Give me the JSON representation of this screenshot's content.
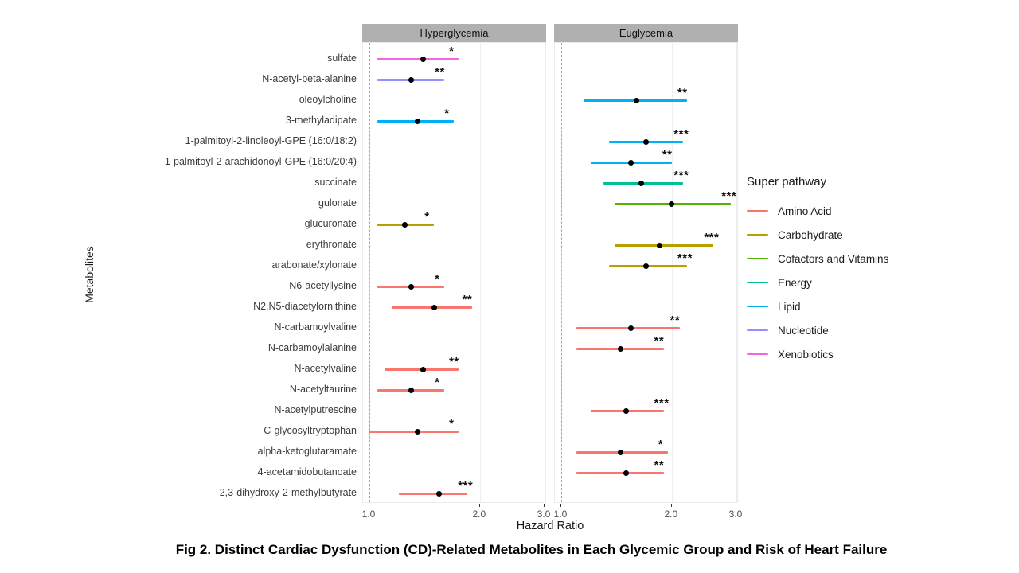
{
  "figure": {
    "caption": "Fig 2. Distinct Cardiac Dysfunction (CD)-Related Metabolites in Each Glycemic Group and Risk of Heart Failure",
    "x_axis_label": "Hazard Ratio",
    "y_axis_label": "Metabolites"
  },
  "legend": {
    "title": "Super pathway",
    "items": [
      {
        "label": "Amino Acid",
        "color": "#F8766D"
      },
      {
        "label": "Carbohydrate",
        "color": "#B79F00"
      },
      {
        "label": "Cofactors and Vitamins",
        "color": "#53B400"
      },
      {
        "label": "Energy",
        "color": "#00C094"
      },
      {
        "label": "Lipid",
        "color": "#00B0F6"
      },
      {
        "label": "Nucleotide",
        "color": "#9590FF"
      },
      {
        "label": "Xenobiotics",
        "color": "#F564E3"
      }
    ]
  },
  "chart_data": {
    "type": "forest",
    "panels": [
      "Hyperglycemia",
      "Euglycemia"
    ],
    "x_scale": "log",
    "x_ticks": [
      1.0,
      2.0,
      3.0
    ],
    "x_range": [
      0.95,
      3.1
    ],
    "reference_line": 1.0,
    "rows": [
      {
        "metabolite": "sulfate",
        "panel": "Hyperglycemia",
        "pathway": "Xenobiotics",
        "hr": 1.4,
        "lo": 1.05,
        "hi": 1.75,
        "sig": "*"
      },
      {
        "metabolite": "N-acetyl-beta-alanine",
        "panel": "Hyperglycemia",
        "pathway": "Nucleotide",
        "hr": 1.3,
        "lo": 1.05,
        "hi": 1.6,
        "sig": "**"
      },
      {
        "metabolite": "oleoylcholine",
        "panel": "Euglycemia",
        "pathway": "Lipid",
        "hr": 1.6,
        "lo": 1.15,
        "hi": 2.2,
        "sig": "**"
      },
      {
        "metabolite": "3-methyladipate",
        "panel": "Hyperglycemia",
        "pathway": "Lipid",
        "hr": 1.35,
        "lo": 1.05,
        "hi": 1.7,
        "sig": "*"
      },
      {
        "metabolite": "1-palmitoyl-2-linoleoyl-GPE (16:0/18:2)",
        "panel": "Euglycemia",
        "pathway": "Lipid",
        "hr": 1.7,
        "lo": 1.35,
        "hi": 2.15,
        "sig": "***"
      },
      {
        "metabolite": "1-palmitoyl-2-arachidonoyl-GPE (16:0/20:4)",
        "panel": "Euglycemia",
        "pathway": "Lipid",
        "hr": 1.55,
        "lo": 1.2,
        "hi": 2.0,
        "sig": "**"
      },
      {
        "metabolite": "succinate",
        "panel": "Euglycemia",
        "pathway": "Energy",
        "hr": 1.65,
        "lo": 1.3,
        "hi": 2.15,
        "sig": "***"
      },
      {
        "metabolite": "gulonate",
        "panel": "Euglycemia",
        "pathway": "Cofactors and Vitamins",
        "hr": 2.0,
        "lo": 1.4,
        "hi": 2.9,
        "sig": "***"
      },
      {
        "metabolite": "glucuronate",
        "panel": "Hyperglycemia",
        "pathway": "Carbohydrate",
        "hr": 1.25,
        "lo": 1.05,
        "hi": 1.5,
        "sig": "*"
      },
      {
        "metabolite": "erythronate",
        "panel": "Euglycemia",
        "pathway": "Carbohydrate",
        "hr": 1.85,
        "lo": 1.4,
        "hi": 2.6,
        "sig": "***"
      },
      {
        "metabolite": "arabonate/xylonate",
        "panel": "Euglycemia",
        "pathway": "Carbohydrate",
        "hr": 1.7,
        "lo": 1.35,
        "hi": 2.2,
        "sig": "***"
      },
      {
        "metabolite": "N6-acetyllysine",
        "panel": "Hyperglycemia",
        "pathway": "Amino Acid",
        "hr": 1.3,
        "lo": 1.05,
        "hi": 1.6,
        "sig": "*"
      },
      {
        "metabolite": "N2,N5-diacetylornithine",
        "panel": "Hyperglycemia",
        "pathway": "Amino Acid",
        "hr": 1.5,
        "lo": 1.15,
        "hi": 1.9,
        "sig": "**"
      },
      {
        "metabolite": "N-carbamoylvaline",
        "panel": "Euglycemia",
        "pathway": "Amino Acid",
        "hr": 1.55,
        "lo": 1.1,
        "hi": 2.1,
        "sig": "**"
      },
      {
        "metabolite": "N-carbamoylalanine",
        "panel": "Euglycemia",
        "pathway": "Amino Acid",
        "hr": 1.45,
        "lo": 1.1,
        "hi": 1.9,
        "sig": "**"
      },
      {
        "metabolite": "N-acetylvaline",
        "panel": "Hyperglycemia",
        "pathway": "Amino Acid",
        "hr": 1.4,
        "lo": 1.1,
        "hi": 1.75,
        "sig": "**"
      },
      {
        "metabolite": "N-acetyltaurine",
        "panel": "Hyperglycemia",
        "pathway": "Amino Acid",
        "hr": 1.3,
        "lo": 1.05,
        "hi": 1.6,
        "sig": "*"
      },
      {
        "metabolite": "N-acetylputrescine",
        "panel": "Euglycemia",
        "pathway": "Amino Acid",
        "hr": 1.5,
        "lo": 1.2,
        "hi": 1.9,
        "sig": "***"
      },
      {
        "metabolite": "C-glycosyltryptophan",
        "panel": "Hyperglycemia",
        "pathway": "Amino Acid",
        "hr": 1.35,
        "lo": 1.0,
        "hi": 1.75,
        "sig": "*"
      },
      {
        "metabolite": "alpha-ketoglutaramate",
        "panel": "Euglycemia",
        "pathway": "Amino Acid",
        "hr": 1.45,
        "lo": 1.1,
        "hi": 1.95,
        "sig": "*"
      },
      {
        "metabolite": "4-acetamidobutanoate",
        "panel": "Euglycemia",
        "pathway": "Amino Acid",
        "hr": 1.5,
        "lo": 1.1,
        "hi": 1.9,
        "sig": "**"
      },
      {
        "metabolite": "2,3-dihydroxy-2-methylbutyrate",
        "panel": "Hyperglycemia",
        "pathway": "Amino Acid",
        "hr": 1.55,
        "lo": 1.2,
        "hi": 1.85,
        "sig": "***"
      }
    ]
  }
}
